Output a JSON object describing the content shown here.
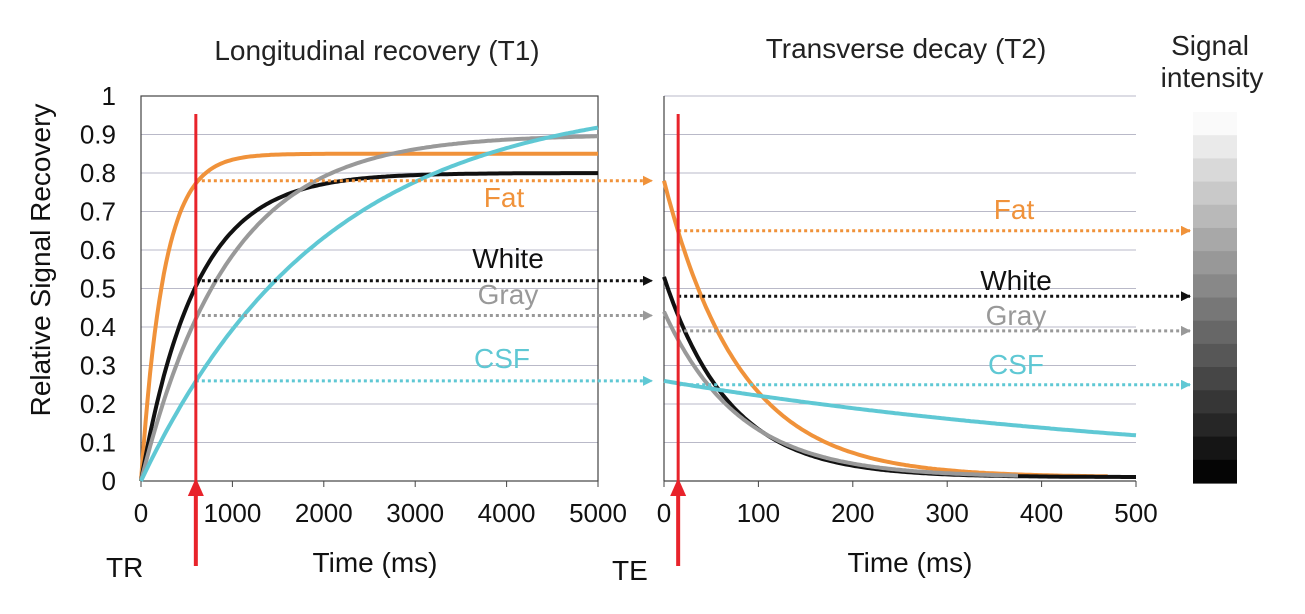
{
  "chart_data": [
    {
      "type": "line",
      "title": "Longitudinal recovery (T1)",
      "xlabel": "Time (ms)",
      "ylabel": "Relative Signal Recovery",
      "xlim": [
        0,
        5000
      ],
      "ylim": [
        0,
        1
      ],
      "x_ticks": [
        "0",
        "1000",
        "2000",
        "3000",
        "4000",
        "5000"
      ],
      "y_ticks": [
        "0",
        "0.1",
        "0.2",
        "0.3",
        "0.4",
        "0.5",
        "0.6",
        "0.7",
        "0.8",
        "0.9",
        "1"
      ],
      "grid": true,
      "marker": {
        "label": "TR",
        "x": 600
      },
      "series": [
        {
          "name": "Fat",
          "color": "#f0923a",
          "plateau": 0.85,
          "t1": 250,
          "value_at_marker": 0.78
        },
        {
          "name": "White",
          "color": "#111111",
          "plateau": 0.8,
          "t1": 600,
          "value_at_marker": 0.52
        },
        {
          "name": "Gray",
          "color": "#999999",
          "plateau": 0.9,
          "t1": 950,
          "value_at_marker": 0.43
        },
        {
          "name": "CSF",
          "color": "#5fc8d4",
          "plateau": 1.0,
          "t1": 2000,
          "value_at_marker": 0.26
        }
      ]
    },
    {
      "type": "line",
      "title": "Transverse decay (T2)",
      "xlabel": "Time (ms)",
      "xlim": [
        0,
        500
      ],
      "ylim": [
        0,
        1
      ],
      "x_ticks": [
        "0",
        "100",
        "200",
        "300",
        "400",
        "500"
      ],
      "grid": true,
      "marker": {
        "label": "TE",
        "x": 15
      },
      "series": [
        {
          "name": "Fat",
          "color": "#f0923a",
          "start": 0.78,
          "t2": 80,
          "end_x": 470,
          "value_at_marker": 0.65
        },
        {
          "name": "White",
          "color": "#111111",
          "start": 0.53,
          "t2": 70,
          "end_x": 500,
          "value_at_marker": 0.48
        },
        {
          "name": "Gray",
          "color": "#999999",
          "start": 0.44,
          "t2": 80,
          "end_x": 375,
          "value_at_marker": 0.39
        },
        {
          "name": "CSF",
          "color": "#5fc8d4",
          "start": 0.26,
          "t2": 600,
          "end_x": 500,
          "value_at_marker": 0.25
        }
      ]
    }
  ],
  "colorbar": {
    "label_line1": "Signal",
    "label_line2": "intensity",
    "levels": 16
  }
}
